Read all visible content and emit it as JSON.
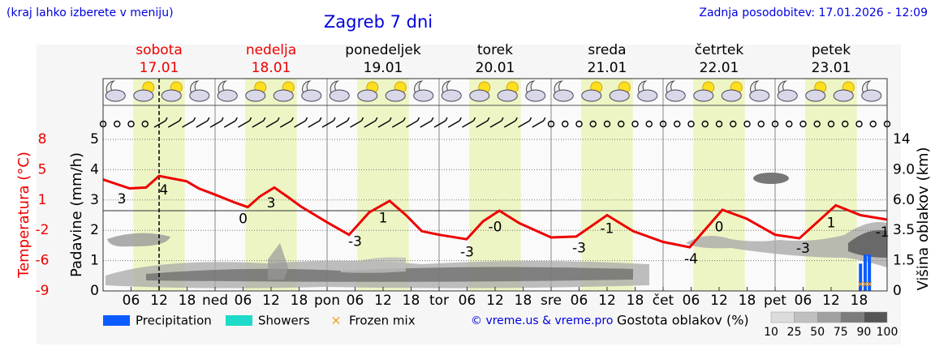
{
  "header": {
    "hint": "(kraj lahko izberete v meniju)",
    "title": "Zagreb 7 dni",
    "updated": "Zadnja posodobitev: 17.01.2026 - 12:09"
  },
  "days": [
    {
      "name": "sobota",
      "date": "17.01",
      "color": "#ee0000"
    },
    {
      "name": "nedelja",
      "date": "18.01",
      "color": "#ee0000"
    },
    {
      "name": "ponedeljek",
      "date": "19.01",
      "color": "#000000"
    },
    {
      "name": "torek",
      "date": "20.01",
      "color": "#000000"
    },
    {
      "name": "sreda",
      "date": "21.01",
      "color": "#000000"
    },
    {
      "name": "četrtek",
      "date": "22.01",
      "color": "#000000"
    },
    {
      "name": "petek",
      "date": "23.01",
      "color": "#000000"
    }
  ],
  "chart_data": {
    "type": "line",
    "xlim": [
      0,
      168
    ],
    "xticks": [
      {
        "value": 6,
        "label": "06"
      },
      {
        "value": 12,
        "label": "12"
      },
      {
        "value": 18,
        "label": "18"
      },
      {
        "value": 24,
        "label": "ned"
      },
      {
        "value": 30,
        "label": "06"
      },
      {
        "value": 36,
        "label": "12"
      },
      {
        "value": 42,
        "label": "18"
      },
      {
        "value": 48,
        "label": "pon"
      },
      {
        "value": 54,
        "label": "06"
      },
      {
        "value": 60,
        "label": "12"
      },
      {
        "value": 66,
        "label": "18"
      },
      {
        "value": 72,
        "label": "tor"
      },
      {
        "value": 78,
        "label": "06"
      },
      {
        "value": 84,
        "label": "12"
      },
      {
        "value": 90,
        "label": "18"
      },
      {
        "value": 96,
        "label": "sre"
      },
      {
        "value": 102,
        "label": "06"
      },
      {
        "value": 108,
        "label": "12"
      },
      {
        "value": 114,
        "label": "18"
      },
      {
        "value": 120,
        "label": "čet"
      },
      {
        "value": 126,
        "label": "06"
      },
      {
        "value": 132,
        "label": "12"
      },
      {
        "value": 138,
        "label": "18"
      },
      {
        "value": 144,
        "label": "pet"
      },
      {
        "value": 150,
        "label": "06"
      },
      {
        "value": 156,
        "label": "12"
      },
      {
        "value": 162,
        "label": "18"
      }
    ],
    "now_line": 12,
    "temperature": {
      "label": "Temperatura (°C)",
      "color": "#ee0000",
      "zero_line": 0,
      "ylim": [
        -9,
        8
      ],
      "yticks": [
        -9,
        {
          "value": -5.6,
          "label": "-6"
        },
        {
          "value": -2.2,
          "label": "-2"
        },
        {
          "value": 1.2,
          "label": "1"
        },
        {
          "value": 4.6,
          "label": "5"
        },
        8
      ],
      "x": [
        0,
        5.7,
        9.2,
        12,
        17.9,
        20.5,
        24,
        28.3,
        31,
        33.6,
        36.7,
        39.7,
        42.3,
        48,
        52.7,
        57,
        61.4,
        64.9,
        68.3,
        72,
        77.9,
        81.4,
        84.9,
        89.2,
        96,
        101.4,
        108,
        113.6,
        120,
        125.7,
        132.7,
        137.9,
        144,
        149.2,
        157,
        162.3,
        168
      ],
      "values": [
        3.5,
        2.5,
        2.6,
        3.9,
        3.3,
        2.5,
        1.8,
        0.9,
        0.4,
        1.6,
        2.6,
        1.5,
        0.5,
        -1.3,
        -2.7,
        -0.2,
        1.1,
        -0.5,
        -2.3,
        -2.7,
        -3.2,
        -1.2,
        0,
        -1.4,
        -3,
        -2.9,
        -0.5,
        -2.3,
        -3.5,
        -4.1,
        0.1,
        -0.9,
        -2.7,
        -3.1,
        0.6,
        -0.5,
        -1
      ],
      "value_labels": [
        {
          "x": 4,
          "label": "3"
        },
        {
          "x": 13,
          "label": "4"
        },
        {
          "x": 30,
          "label": "0"
        },
        {
          "x": 36,
          "label": "3"
        },
        {
          "x": 54,
          "label": "-3"
        },
        {
          "x": 60,
          "label": "1"
        },
        {
          "x": 78,
          "label": "-3"
        },
        {
          "x": 84,
          "label": "-0"
        },
        {
          "x": 102,
          "label": "-3"
        },
        {
          "x": 108,
          "label": "-1"
        },
        {
          "x": 126,
          "label": "-4"
        },
        {
          "x": 132,
          "label": "0"
        },
        {
          "x": 150,
          "label": "-3"
        },
        {
          "x": 156,
          "label": "1"
        },
        {
          "x": 167,
          "label": "-1"
        }
      ]
    },
    "precipitation": {
      "label": "Padavine (mm/h)",
      "ylim": [
        0,
        5
      ],
      "yticks": [
        0,
        1,
        2,
        3,
        4,
        5
      ],
      "grid": true,
      "series": [
        {
          "name": "Precipitation",
          "color": "#0a5cff",
          "x": [
            162.3,
            163.3,
            164.2
          ],
          "values": [
            0.9,
            1.2,
            1.2
          ]
        },
        {
          "name": "Showers",
          "color": "#1ddbc8",
          "x": [],
          "values": []
        },
        {
          "name": "Frozen mix",
          "color": "#f0a020",
          "x": [
            162.3,
            163.3,
            164.2
          ]
        }
      ]
    },
    "cloud_height": {
      "label": "Višina oblakov (km)",
      "yticks": [
        0,
        1.5,
        3.5,
        {
          "value": 6,
          "label": "6.0"
        },
        {
          "value": 9,
          "label": "9.0"
        },
        14
      ]
    },
    "cloud_density": {
      "label": "Gostota oblakov (%)",
      "scale": [
        10,
        25,
        50,
        75,
        90,
        100
      ]
    },
    "copyright": "© vreme.us & vreme.pro"
  }
}
